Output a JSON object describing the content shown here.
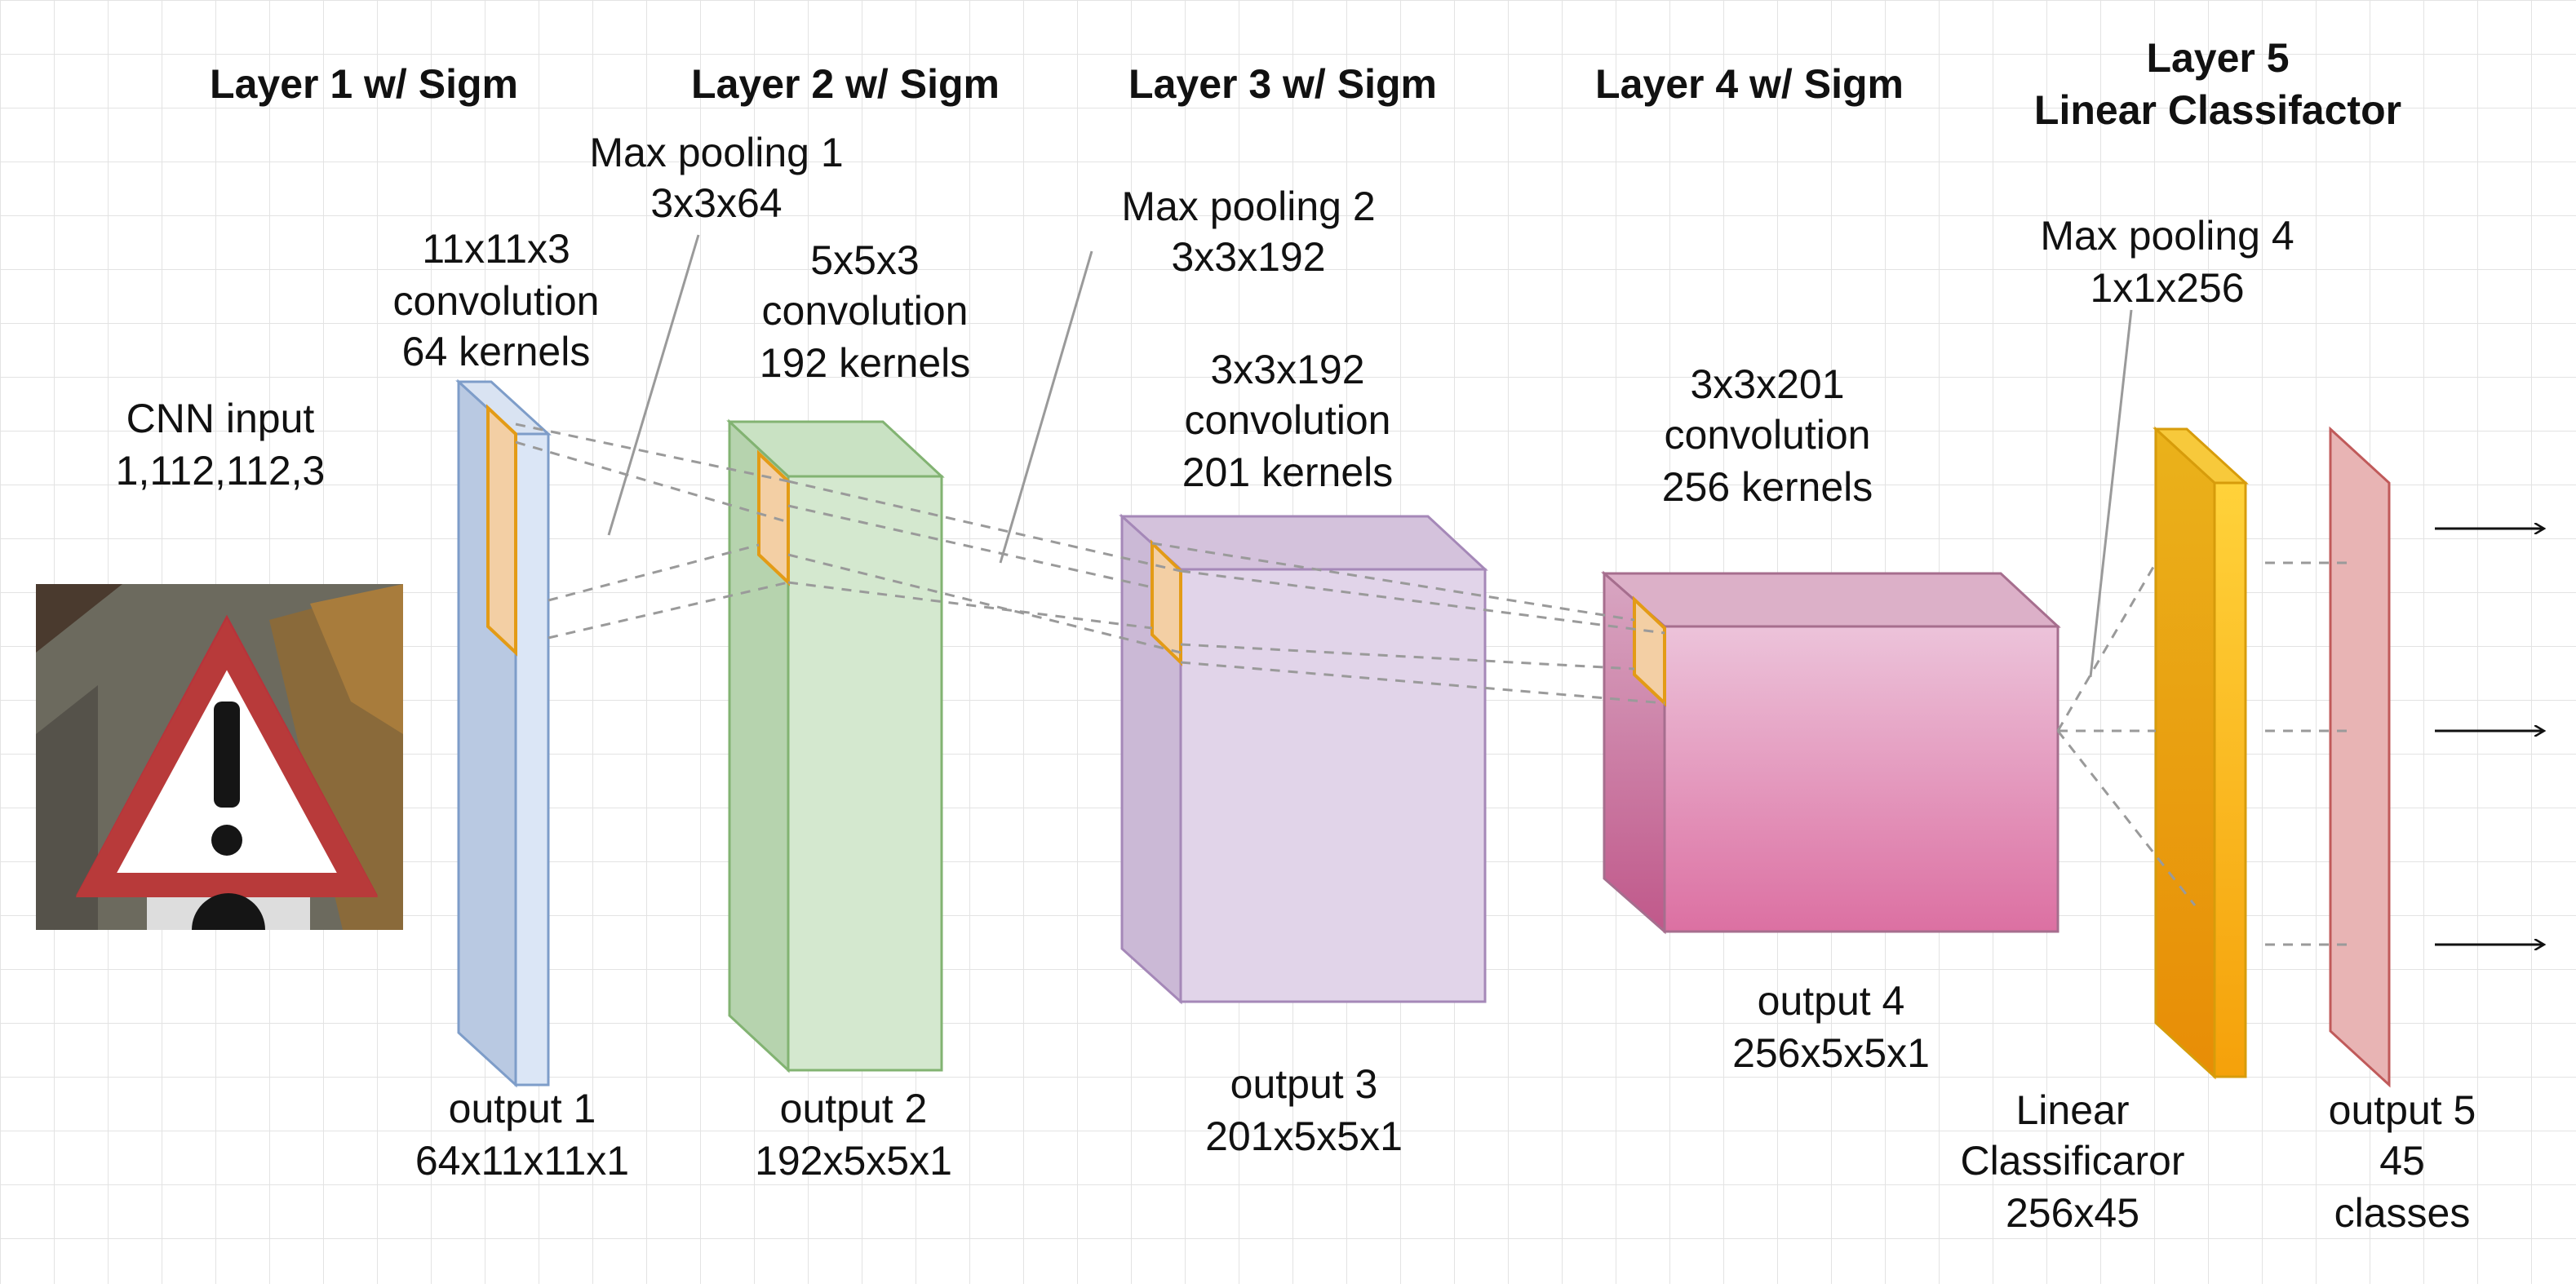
{
  "headers": {
    "layer1": "Layer 1 w/ Sigm",
    "layer2": "Layer 2 w/ Sigm",
    "layer3": "Layer 3 w/ Sigm",
    "layer4": "Layer 4 w/ Sigm",
    "layer5_line1": "Layer 5",
    "layer5_line2": "Linear Classifactor"
  },
  "input": {
    "line1": "CNN input",
    "line2": "1,112,112,3"
  },
  "layer1": {
    "conv": [
      "11x11x3",
      "convolution",
      "64 kernels"
    ],
    "output": [
      "output 1",
      "64x11x11x1"
    ],
    "color": "#c6d3e8"
  },
  "maxpool1": [
    "Max pooling 1",
    "3x3x64"
  ],
  "layer2": {
    "conv": [
      "5x5x3",
      "convolution",
      "192 kernels"
    ],
    "output": [
      "output 2",
      "192x5x5x1"
    ],
    "color": "#d4e8cf"
  },
  "maxpool2": [
    "Max pooling 2",
    "3x3x192"
  ],
  "layer3": {
    "conv": [
      "3x3x192",
      "convolution",
      "201 kernels"
    ],
    "output": [
      "output 3",
      "201x5x5x1"
    ],
    "color": "#e1d4e9"
  },
  "layer4": {
    "conv": [
      "3x3x201",
      "convolution",
      "256 kernels"
    ],
    "output": [
      "output 4",
      "256x5x5x1"
    ],
    "color": "#e48fb6"
  },
  "maxpool4": [
    "Max pooling 4",
    "1x1x256"
  ],
  "classifier": {
    "label": [
      "Linear",
      "Classificaror",
      "256x45"
    ],
    "color": "#f2a50f"
  },
  "output5": {
    "label": [
      "output 5",
      "45",
      "classes"
    ],
    "color": "#e8b4b4"
  },
  "kernel_highlight_color": "#f3cfa4"
}
